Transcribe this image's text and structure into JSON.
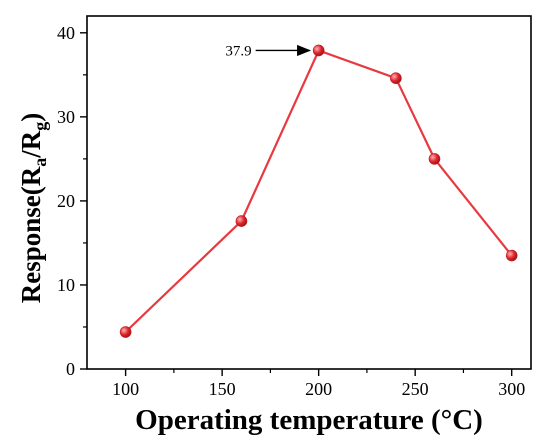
{
  "chart_data": {
    "type": "line",
    "x": [
      100,
      160,
      200,
      240,
      260,
      300
    ],
    "series": [
      {
        "values": [
          4.4,
          17.6,
          37.9,
          34.6,
          25.0,
          13.5
        ]
      }
    ],
    "xlabel": "Operating temperature (°C)",
    "ylabel": {
      "prefix": "Response(R",
      "sub1": "a",
      "mid": "/R",
      "sub2": "g",
      "suffix": ")"
    },
    "xlim": [
      80,
      310
    ],
    "ylim": [
      0,
      42
    ],
    "xticks": [
      100,
      150,
      200,
      250,
      300
    ],
    "yticks": [
      0,
      10,
      20,
      30,
      40
    ],
    "grid": false,
    "annotation": {
      "text": "37.9",
      "x": 200,
      "y": 37.9
    },
    "colors": {
      "line": "#e8393f",
      "marker": "#e0242b",
      "marker_highlight": "#ffb3b3",
      "axis": "#000000"
    }
  }
}
